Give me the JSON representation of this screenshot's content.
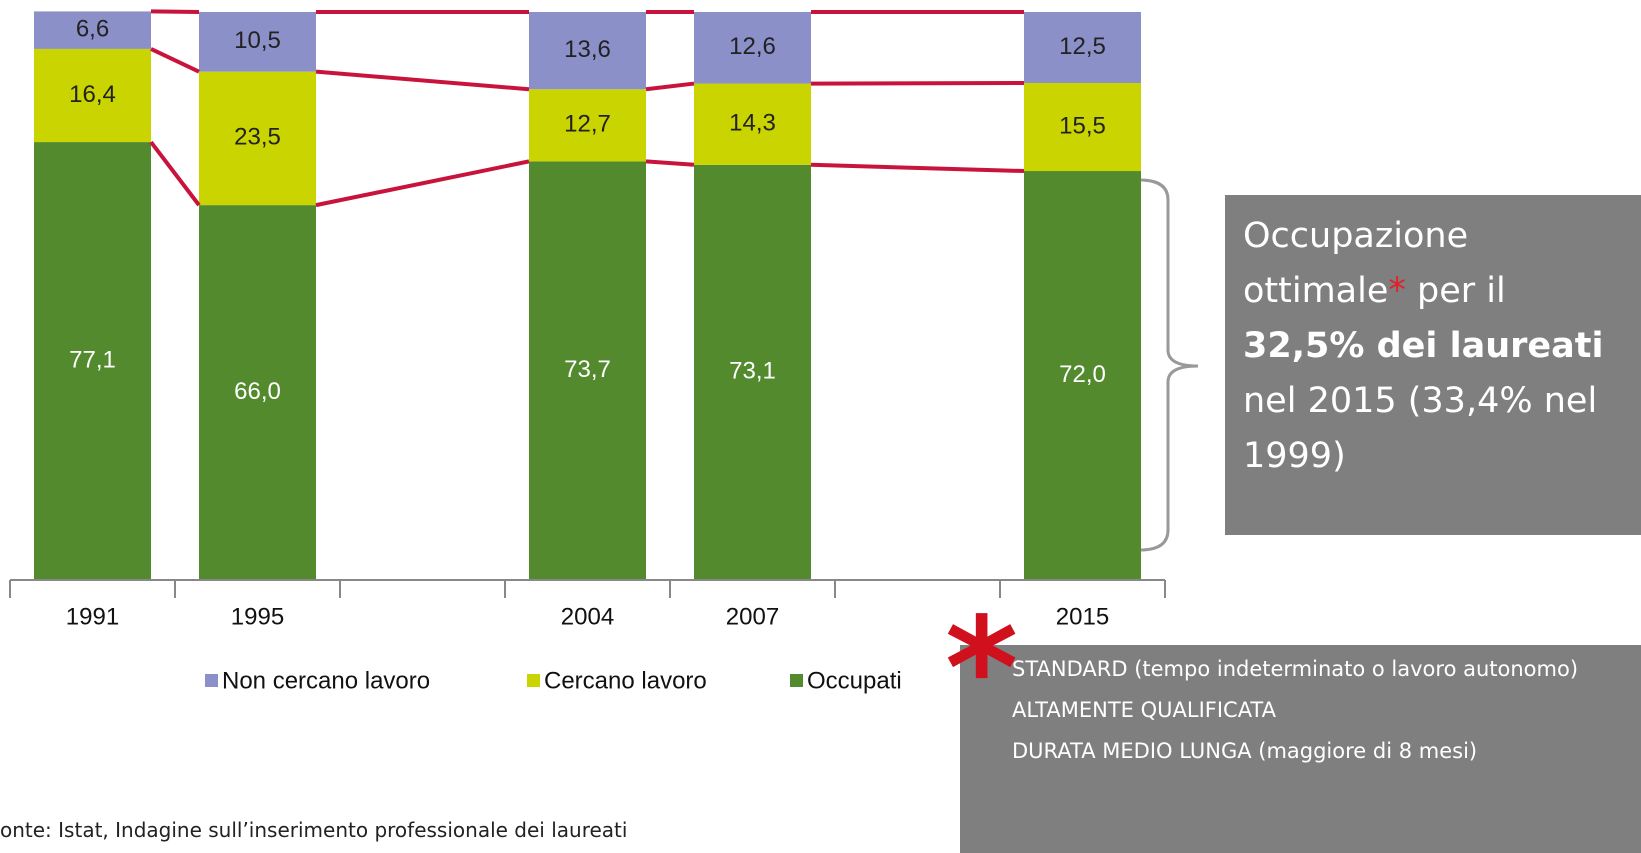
{
  "chart_data": {
    "type": "stacked_bar",
    "categories": [
      "1991",
      "1995",
      null,
      "2004",
      "2007",
      null,
      "2015"
    ],
    "series": [
      {
        "name": "Non cercano lavoro",
        "color": "#8c90c8",
        "values": [
          6.6,
          10.5,
          null,
          13.6,
          12.6,
          null,
          12.5
        ],
        "value_labels": [
          "6,6",
          "10,5",
          null,
          "13,6",
          "12,6",
          null,
          "12,5"
        ]
      },
      {
        "name": "Cercano lavoro",
        "color": "#c9d400",
        "values": [
          16.4,
          23.5,
          null,
          12.7,
          14.3,
          null,
          15.5
        ],
        "value_labels": [
          "16,4",
          "23,5",
          null,
          "12,7",
          "14,3",
          null,
          "15,5"
        ]
      },
      {
        "name": "Occupati",
        "color": "#538a2e",
        "values": [
          77.1,
          66.0,
          null,
          73.7,
          73.1,
          null,
          72.0
        ],
        "value_labels": [
          "77,1",
          "66,0",
          null,
          "73,7",
          "73,1",
          null,
          "72,0"
        ]
      }
    ],
    "connector_color": "#c8143c",
    "ylim": [
      0,
      100
    ],
    "source": "onte: Istat, Indagine sull’inserimento professionale dei laureati"
  },
  "annotation": {
    "text_1": "Occupazione ottimale",
    "star": "*",
    "text_2": " per il ",
    "bold": "32,5% dei laureati",
    "text_3": " nel 2015 (33,4% nel 1999)"
  },
  "footnote": {
    "marker": "*",
    "lines": [
      "STANDARD (tempo indeterminato o lavoro autonomo)",
      "ALTAMENTE QUALIFICATA",
      "DURATA MEDIO LUNGA (maggiore di 8 mesi)"
    ]
  }
}
